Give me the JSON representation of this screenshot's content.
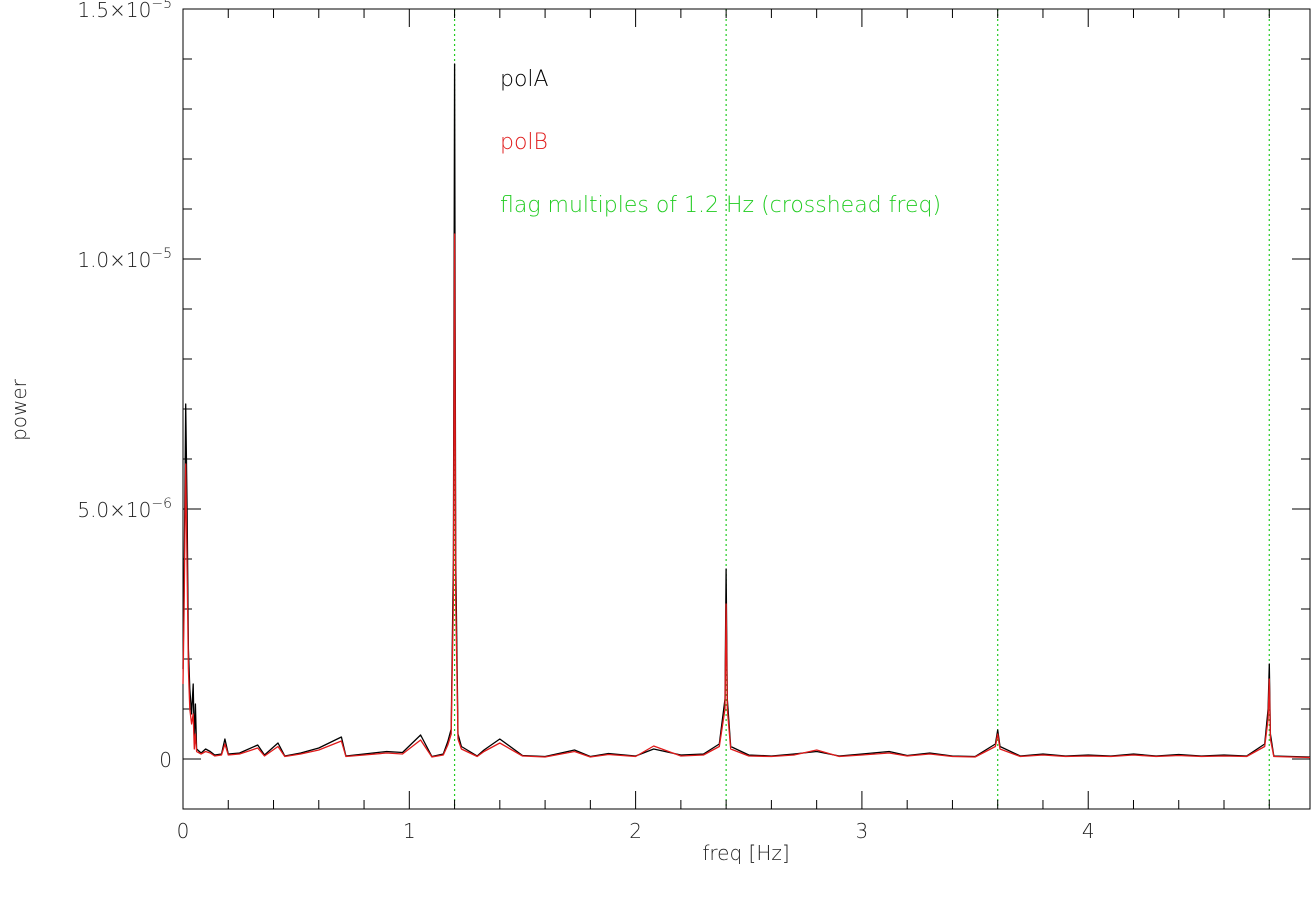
{
  "chart_data": {
    "type": "line",
    "xlabel": "freq [Hz]",
    "ylabel": "power",
    "xlim": [
      0,
      4.98
    ],
    "ylim": [
      -1e-06,
      1.5e-05
    ],
    "x_ticks": [
      {
        "value": 0,
        "label": "0"
      },
      {
        "value": 1,
        "label": "1"
      },
      {
        "value": 2,
        "label": "2"
      },
      {
        "value": 3,
        "label": "3"
      },
      {
        "value": 4,
        "label": "4"
      }
    ],
    "x_minor_step": 0.2,
    "y_ticks": [
      {
        "value": 0,
        "base": "0",
        "exp": ""
      },
      {
        "value": 5e-06,
        "base": "5.0×10",
        "exp": "−6"
      },
      {
        "value": 1e-05,
        "base": "1.0×10",
        "exp": "−5"
      },
      {
        "value": 1.5e-05,
        "base": "1.5×10",
        "exp": "−5"
      }
    ],
    "y_minor_step": 1e-06,
    "flag_lines": {
      "label": "flag multiples of 1.2 Hz (crosshead freq)",
      "x": [
        1.2,
        2.4,
        3.6,
        4.8
      ],
      "color": "#22cc22"
    },
    "series": [
      {
        "name": "polA",
        "color": "#000000",
        "points": [
          [
            0.0,
            1.8e-06
          ],
          [
            0.005,
            3.5e-06
          ],
          [
            0.012,
            7.1e-06
          ],
          [
            0.018,
            5e-06
          ],
          [
            0.024,
            2.2e-06
          ],
          [
            0.03,
            1.4e-06
          ],
          [
            0.038,
            9e-07
          ],
          [
            0.045,
            1.5e-06
          ],
          [
            0.05,
            3e-07
          ],
          [
            0.055,
            1.1e-06
          ],
          [
            0.06,
            2e-07
          ],
          [
            0.08,
            1.2e-07
          ],
          [
            0.1,
            2e-07
          ],
          [
            0.12,
            1.5e-07
          ],
          [
            0.14,
            8e-08
          ],
          [
            0.17,
            1e-07
          ],
          [
            0.185,
            4e-07
          ],
          [
            0.2,
            1e-07
          ],
          [
            0.25,
            1.2e-07
          ],
          [
            0.33,
            2.8e-07
          ],
          [
            0.36,
            8e-08
          ],
          [
            0.42,
            3.2e-07
          ],
          [
            0.45,
            6e-08
          ],
          [
            0.52,
            1.2e-07
          ],
          [
            0.6,
            2.2e-07
          ],
          [
            0.7,
            4.4e-07
          ],
          [
            0.72,
            6e-08
          ],
          [
            0.8,
            1e-07
          ],
          [
            0.9,
            1.5e-07
          ],
          [
            0.97,
            1.3e-07
          ],
          [
            1.05,
            4.8e-07
          ],
          [
            1.1,
            5e-08
          ],
          [
            1.15,
            1e-07
          ],
          [
            1.17,
            3.5e-07
          ],
          [
            1.185,
            6e-07
          ],
          [
            1.195,
            4e-06
          ],
          [
            1.2,
            1.39e-05
          ],
          [
            1.205,
            4e-06
          ],
          [
            1.215,
            5e-07
          ],
          [
            1.23,
            2.5e-07
          ],
          [
            1.3,
            6e-08
          ],
          [
            1.33,
            1.8e-07
          ],
          [
            1.4,
            4e-07
          ],
          [
            1.5,
            7e-08
          ],
          [
            1.6,
            5e-08
          ],
          [
            1.73,
            1.8e-07
          ],
          [
            1.8,
            5e-08
          ],
          [
            1.88,
            1.1e-07
          ],
          [
            2.0,
            6e-08
          ],
          [
            2.08,
            2e-07
          ],
          [
            2.2,
            8e-08
          ],
          [
            2.3,
            1e-07
          ],
          [
            2.37,
            3e-07
          ],
          [
            2.395,
            1.2e-06
          ],
          [
            2.4,
            3.8e-06
          ],
          [
            2.405,
            1.2e-06
          ],
          [
            2.42,
            2.5e-07
          ],
          [
            2.5,
            8e-08
          ],
          [
            2.6,
            6e-08
          ],
          [
            2.7,
            1e-07
          ],
          [
            2.8,
            1.5e-07
          ],
          [
            2.9,
            6e-08
          ],
          [
            3.0,
            1e-07
          ],
          [
            3.12,
            1.5e-07
          ],
          [
            3.2,
            7e-08
          ],
          [
            3.3,
            1.2e-07
          ],
          [
            3.4,
            6e-08
          ],
          [
            3.5,
            5e-08
          ],
          [
            3.59,
            3e-07
          ],
          [
            3.6,
            5.8e-07
          ],
          [
            3.61,
            2.5e-07
          ],
          [
            3.7,
            6e-08
          ],
          [
            3.8,
            1e-07
          ],
          [
            3.9,
            6e-08
          ],
          [
            4.0,
            8e-08
          ],
          [
            4.1,
            6e-08
          ],
          [
            4.2,
            1e-07
          ],
          [
            4.3,
            6e-08
          ],
          [
            4.4,
            9e-08
          ],
          [
            4.5,
            6e-08
          ],
          [
            4.6,
            8e-08
          ],
          [
            4.7,
            6e-08
          ],
          [
            4.78,
            3e-07
          ],
          [
            4.795,
            1e-06
          ],
          [
            4.8,
            1.9e-06
          ],
          [
            4.805,
            5e-07
          ],
          [
            4.82,
            6e-08
          ],
          [
            4.9,
            5e-08
          ],
          [
            4.98,
            4e-08
          ]
        ]
      },
      {
        "name": "polB",
        "color": "#e01a1a",
        "points": [
          [
            0.0,
            1.5e-06
          ],
          [
            0.005,
            3e-06
          ],
          [
            0.012,
            5.9e-06
          ],
          [
            0.018,
            3.8e-06
          ],
          [
            0.024,
            1.8e-06
          ],
          [
            0.03,
            1e-06
          ],
          [
            0.038,
            7e-07
          ],
          [
            0.045,
            9e-07
          ],
          [
            0.05,
            2e-07
          ],
          [
            0.055,
            5e-07
          ],
          [
            0.06,
            1.5e-07
          ],
          [
            0.08,
            1e-07
          ],
          [
            0.1,
            1.5e-07
          ],
          [
            0.12,
            1.2e-07
          ],
          [
            0.14,
            6e-08
          ],
          [
            0.17,
            8e-08
          ],
          [
            0.185,
            3e-07
          ],
          [
            0.2,
            8e-08
          ],
          [
            0.25,
            1e-07
          ],
          [
            0.33,
            2.2e-07
          ],
          [
            0.36,
            6e-08
          ],
          [
            0.42,
            2.5e-07
          ],
          [
            0.45,
            5e-08
          ],
          [
            0.52,
            1e-07
          ],
          [
            0.6,
            1.8e-07
          ],
          [
            0.7,
            3.6e-07
          ],
          [
            0.72,
            5e-08
          ],
          [
            0.8,
            8e-08
          ],
          [
            0.9,
            1.2e-07
          ],
          [
            0.97,
            1e-07
          ],
          [
            1.05,
            3.8e-07
          ],
          [
            1.1,
            4e-08
          ],
          [
            1.15,
            8e-08
          ],
          [
            1.17,
            2.8e-07
          ],
          [
            1.185,
            5e-07
          ],
          [
            1.195,
            3.2e-06
          ],
          [
            1.2,
            1.05e-05
          ],
          [
            1.205,
            3.2e-06
          ],
          [
            1.215,
            4e-07
          ],
          [
            1.23,
            2e-07
          ],
          [
            1.3,
            5e-08
          ],
          [
            1.33,
            1.5e-07
          ],
          [
            1.4,
            3.2e-07
          ],
          [
            1.5,
            6e-08
          ],
          [
            1.6,
            4e-08
          ],
          [
            1.73,
            1.5e-07
          ],
          [
            1.8,
            4e-08
          ],
          [
            1.88,
            9e-08
          ],
          [
            2.0,
            5e-08
          ],
          [
            2.08,
            2.6e-07
          ],
          [
            2.2,
            6e-08
          ],
          [
            2.3,
            8e-08
          ],
          [
            2.37,
            2.5e-07
          ],
          [
            2.395,
            1e-06
          ],
          [
            2.4,
            3.1e-06
          ],
          [
            2.405,
            1e-06
          ],
          [
            2.42,
            2e-07
          ],
          [
            2.5,
            6e-08
          ],
          [
            2.6,
            5e-08
          ],
          [
            2.7,
            8e-08
          ],
          [
            2.8,
            1.8e-07
          ],
          [
            2.9,
            5e-08
          ],
          [
            3.0,
            8e-08
          ],
          [
            3.12,
            1.2e-07
          ],
          [
            3.2,
            6e-08
          ],
          [
            3.3,
            1e-07
          ],
          [
            3.4,
            5e-08
          ],
          [
            3.5,
            4e-08
          ],
          [
            3.59,
            2.5e-07
          ],
          [
            3.6,
            5e-07
          ],
          [
            3.61,
            2e-07
          ],
          [
            3.7,
            5e-08
          ],
          [
            3.8,
            8e-08
          ],
          [
            3.9,
            5e-08
          ],
          [
            4.0,
            6e-08
          ],
          [
            4.1,
            5e-08
          ],
          [
            4.2,
            8e-08
          ],
          [
            4.3,
            5e-08
          ],
          [
            4.4,
            7e-08
          ],
          [
            4.5,
            5e-08
          ],
          [
            4.6,
            6e-08
          ],
          [
            4.7,
            5e-08
          ],
          [
            4.78,
            2.5e-07
          ],
          [
            4.795,
            8e-07
          ],
          [
            4.8,
            1.6e-06
          ],
          [
            4.805,
            4e-07
          ],
          [
            4.82,
            5e-08
          ],
          [
            4.9,
            4e-08
          ],
          [
            4.98,
            3e-08
          ]
        ]
      }
    ]
  }
}
